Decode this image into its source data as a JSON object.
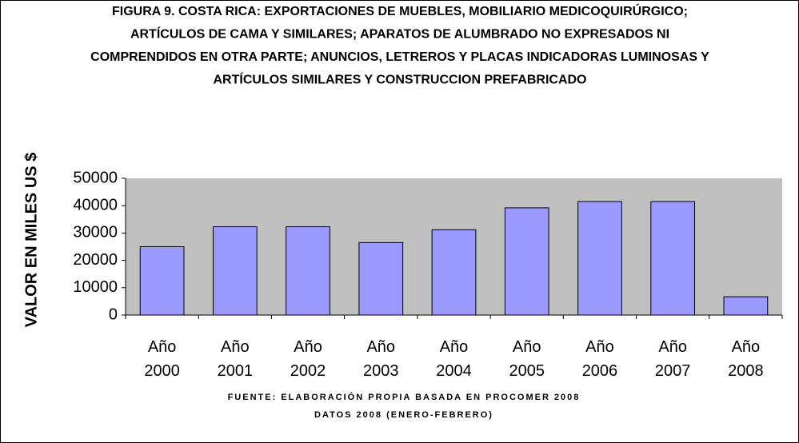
{
  "chart_data": {
    "type": "bar",
    "title": [
      "FIGURA 9. COSTA RICA: EXPORTACIONES DE MUEBLES, MOBILIARIO MEDICOQUIRÚRGICO;",
      "ARTÍCULOS DE CAMA Y SIMILARES; APARATOS DE ALUMBRADO NO EXPRESADOS NI",
      "COMPRENDIDOS EN OTRA PARTE; ANUNCIOS, LETREROS Y PLACAS INDICADORAS LUMINOSAS Y",
      "ARTÍCULOS SIMILARES Y CONSTRUCCION PREFABRICADO"
    ],
    "y_label": "VALOR EN MILES US $",
    "annotations": [
      "FUENTE: ELABORACIÓN PROPIA BASADA EN PROCOMER 2008",
      "DATOS 2008 (ENERO-FEBRERO)"
    ],
    "categories": [
      "Año 2000",
      "Año 2001",
      "Año 2002",
      "Año 2003",
      "Año 2004",
      "Año 2005",
      "Año 2006",
      "Año 2007",
      "Año 2008"
    ],
    "values": [
      25000,
      32300,
      32300,
      26500,
      31200,
      39200,
      41500,
      41500,
      6700
    ],
    "color": "#9999ff",
    "ylim": [
      0,
      50000
    ],
    "yticks": [
      0,
      10000,
      20000,
      30000,
      40000,
      50000
    ],
    "grid": false
  }
}
